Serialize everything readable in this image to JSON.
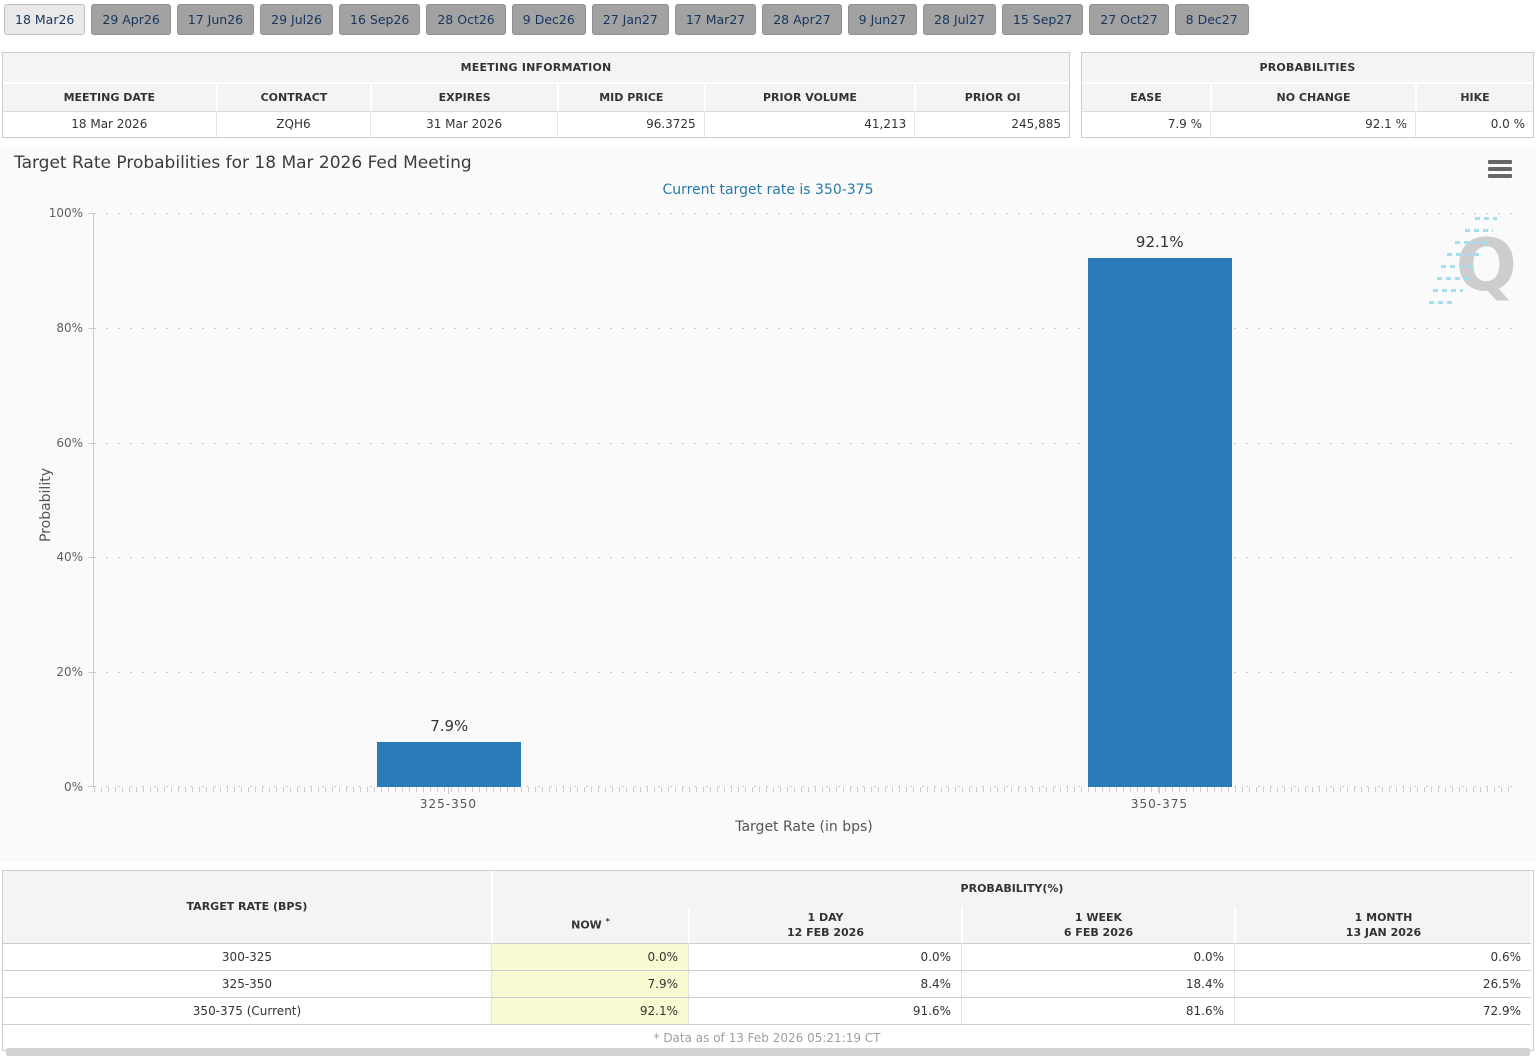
{
  "tabs": [
    "18 Mar26",
    "29 Apr26",
    "17 Jun26",
    "29 Jul26",
    "16 Sep26",
    "28 Oct26",
    "9 Dec26",
    "27 Jan27",
    "17 Mar27",
    "28 Apr27",
    "9 Jun27",
    "28 Jul27",
    "15 Sep27",
    "27 Oct27",
    "8 Dec27"
  ],
  "active_tab": "18 Mar26",
  "meeting_info": {
    "title": "MEETING INFORMATION",
    "columns": [
      "MEETING DATE",
      "CONTRACT",
      "EXPIRES",
      "MID PRICE",
      "PRIOR VOLUME",
      "PRIOR OI"
    ],
    "row": [
      "18 Mar 2026",
      "ZQH6",
      "31 Mar 2026",
      "96.3725",
      "41,213",
      "245,885"
    ]
  },
  "probabilities_summary": {
    "title": "PROBABILITIES",
    "columns": [
      "EASE",
      "NO CHANGE",
      "HIKE"
    ],
    "row": [
      "7.9 %",
      "92.1 %",
      "0.0 %"
    ]
  },
  "chart_data": {
    "type": "bar",
    "title": "Target Rate Probabilities for 18 Mar 2026 Fed Meeting",
    "subtitle": "Current target rate is 350-375",
    "categories": [
      "325-350",
      "350-375"
    ],
    "values": [
      7.9,
      92.1
    ],
    "bar_labels": [
      "7.9%",
      "92.1%"
    ],
    "xlabel": "Target Rate (in bps)",
    "ylabel": "Probability",
    "ylim": [
      0,
      100
    ],
    "yticks": [
      "100%",
      "80%",
      "60%",
      "40%",
      "20%",
      "0%"
    ],
    "grid": "dotted horizontal",
    "legend": "none",
    "bar_color": "#2b7bb9",
    "watermark_letter": "Q"
  },
  "probability_table": {
    "rate_header": "TARGET RATE (BPS)",
    "group_header": "PROBABILITY(%)",
    "col_now": "NOW",
    "col_now_sup": "*",
    "col_day": "1 DAY",
    "col_day_date": "12 FEB 2026",
    "col_week": "1 WEEK",
    "col_week_date": "6 FEB 2026",
    "col_month": "1 MONTH",
    "col_month_date": "13 JAN 2026",
    "rows": [
      {
        "rate": "300-325",
        "now": "0.0%",
        "day": "0.0%",
        "week": "0.0%",
        "month": "0.6%"
      },
      {
        "rate": "325-350",
        "now": "7.9%",
        "day": "8.4%",
        "week": "18.4%",
        "month": "26.5%"
      },
      {
        "rate": "350-375 (Current)",
        "now": "92.1%",
        "day": "91.6%",
        "week": "81.6%",
        "month": "72.9%"
      }
    ],
    "footnote": "* Data as of 13 Feb 2026 05:21:19 CT"
  },
  "colors": {
    "bar": "#2b7bb9",
    "subtitle": "#2779ab",
    "now_column_bg": "#fafad2",
    "header_bg": "#f4f4f4",
    "tab_active_bg": "#e9e9e9",
    "tab_inactive_bg": "#a2a2a2",
    "tab_text": "#17365d"
  }
}
